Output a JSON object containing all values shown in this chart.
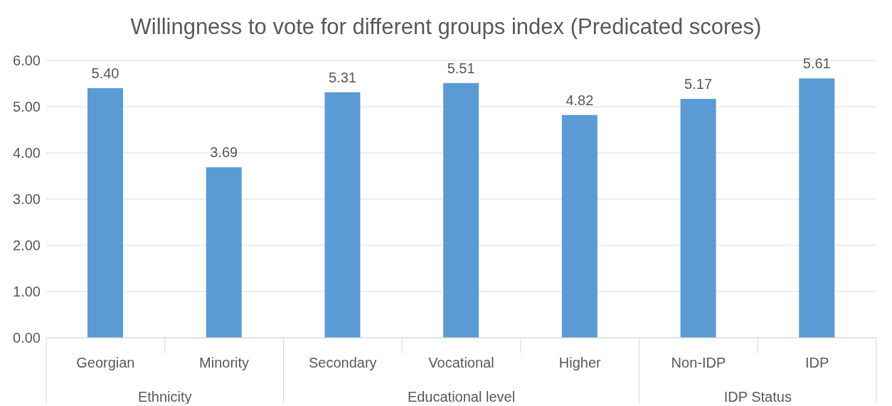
{
  "chart_data": {
    "type": "bar",
    "title": "Willingness to vote for different groups index (Predicated scores)",
    "categories": [
      "Georgian",
      "Minority",
      "Secondary",
      "Vocational",
      "Higher",
      "Non-IDP",
      "IDP"
    ],
    "values": [
      5.4,
      3.69,
      5.31,
      5.51,
      4.82,
      5.17,
      5.61
    ],
    "value_labels": [
      "5.40",
      "3.69",
      "5.31",
      "5.51",
      "4.82",
      "5.17",
      "5.61"
    ],
    "color": "#5b9bd5",
    "ylim": [
      0,
      6
    ],
    "yticks": [
      {
        "value": 0,
        "label": "0.00"
      },
      {
        "value": 1,
        "label": "1.00"
      },
      {
        "value": 2,
        "label": "2.00"
      },
      {
        "value": 3,
        "label": "3.00"
      },
      {
        "value": 4,
        "label": "4.00"
      },
      {
        "value": 5,
        "label": "5.00"
      },
      {
        "value": 6,
        "label": "6.00"
      }
    ],
    "grid": "y",
    "legend": false,
    "annotations": [
      "Ethnicity",
      "Educational level",
      "IDP Status"
    ]
  }
}
